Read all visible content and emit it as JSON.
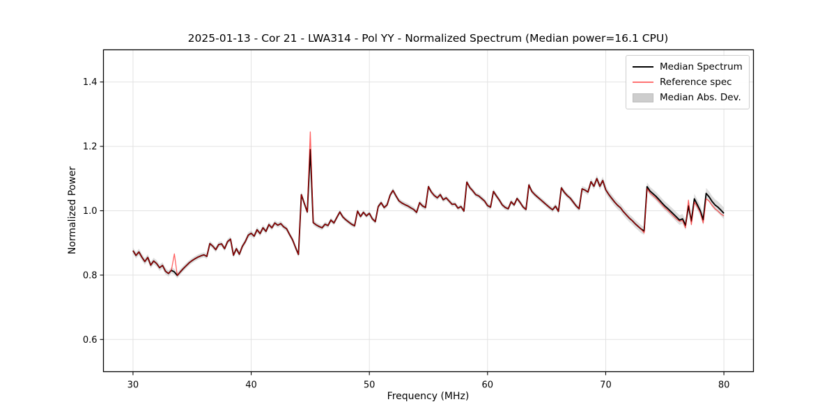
{
  "title": "2025-01-13 - Cor 21 - LWA314 - Pol YY - Normalized Spectrum (Median power=16.1 CPU)",
  "axes": {
    "xlabel": "Frequency (MHz)",
    "ylabel": "Normalized Power",
    "xlim": [
      27.5,
      82.5
    ],
    "ylim": [
      0.5,
      1.5
    ],
    "xticks": [
      30,
      40,
      50,
      60,
      70,
      80
    ],
    "xtick_labels": [
      "30",
      "40",
      "50",
      "60",
      "70",
      "80"
    ],
    "yticks": [
      0.6,
      0.8,
      1.0,
      1.2,
      1.4
    ],
    "ytick_labels": [
      "0.6",
      "0.8",
      "1.0",
      "1.2",
      "1.4"
    ],
    "grid": true
  },
  "legend": {
    "position": "upper right",
    "entries": [
      {
        "label": "Median Spectrum",
        "sample": "line",
        "color": "#000000"
      },
      {
        "label": "Reference spec",
        "sample": "line",
        "color": "rgba(255,0,0,0.55)"
      },
      {
        "label": "Median Abs. Dev.",
        "sample": "patch",
        "color": "#cdcdcd"
      }
    ]
  },
  "colors": {
    "median_line": "#000000",
    "reference_line": "rgba(255,0,0,0.62)",
    "band_fill": "#bdbdbd",
    "band_opacity": "0.5",
    "grid_line": "#e2e2e2",
    "spine": "#000000",
    "background": "#ffffff"
  },
  "chart_data": {
    "type": "line",
    "title": "2025-01-13 - Cor 21 - LWA314 - Pol YY - Normalized Spectrum (Median power=16.1 CPU)",
    "xlabel": "Frequency (MHz)",
    "ylabel": "Normalized Power",
    "xlim": [
      27.5,
      82.5
    ],
    "ylim": [
      0.5,
      1.5
    ],
    "x_start": 30.0,
    "x_step": 0.25,
    "series": [
      {
        "name": "Median Spectrum",
        "values": [
          0.876,
          0.861,
          0.872,
          0.856,
          0.842,
          0.855,
          0.831,
          0.844,
          0.836,
          0.823,
          0.83,
          0.812,
          0.805,
          0.815,
          0.81,
          0.799,
          0.81,
          0.82,
          0.829,
          0.838,
          0.845,
          0.851,
          0.856,
          0.86,
          0.863,
          0.858,
          0.898,
          0.89,
          0.879,
          0.895,
          0.897,
          0.882,
          0.904,
          0.912,
          0.862,
          0.882,
          0.865,
          0.889,
          0.904,
          0.924,
          0.93,
          0.921,
          0.941,
          0.929,
          0.947,
          0.936,
          0.957,
          0.947,
          0.962,
          0.955,
          0.96,
          0.95,
          0.944,
          0.926,
          0.91,
          0.886,
          0.864,
          1.05,
          1.022,
          0.996,
          1.19,
          0.963,
          0.956,
          0.951,
          0.947,
          0.958,
          0.954,
          0.971,
          0.962,
          0.979,
          0.996,
          0.981,
          0.972,
          0.965,
          0.958,
          0.953,
          0.999,
          0.982,
          0.995,
          0.984,
          0.992,
          0.975,
          0.966,
          1.013,
          1.025,
          1.01,
          1.018,
          1.048,
          1.063,
          1.046,
          1.031,
          1.024,
          1.019,
          1.015,
          1.009,
          1.004,
          0.995,
          1.025,
          1.015,
          1.01,
          1.075,
          1.058,
          1.047,
          1.04,
          1.05,
          1.034,
          1.04,
          1.03,
          1.02,
          1.021,
          1.008,
          1.013,
          0.999,
          1.089,
          1.072,
          1.062,
          1.05,
          1.046,
          1.038,
          1.03,
          1.016,
          1.011,
          1.06,
          1.046,
          1.033,
          1.018,
          1.01,
          1.006,
          1.028,
          1.018,
          1.038,
          1.026,
          1.012,
          1.004,
          1.08,
          1.06,
          1.05,
          1.042,
          1.034,
          1.026,
          1.018,
          1.01,
          1.003,
          1.014,
          0.998,
          1.071,
          1.057,
          1.047,
          1.039,
          1.027,
          1.015,
          1.006,
          1.068,
          1.064,
          1.058,
          1.09,
          1.076,
          1.1,
          1.076,
          1.094,
          1.065,
          1.051,
          1.039,
          1.027,
          1.017,
          1.009,
          0.997,
          0.987,
          0.977,
          0.969,
          0.959,
          0.951,
          0.943,
          0.937,
          1.075,
          1.061,
          1.053,
          1.045,
          1.035,
          1.025,
          1.015,
          1.007,
          0.998,
          0.989,
          0.98,
          0.971,
          0.975,
          0.955,
          1.015,
          0.968,
          1.037,
          1.019,
          1.0,
          0.972,
          1.054,
          1.043,
          1.029,
          1.018,
          1.011,
          1.002,
          0.992
        ]
      },
      {
        "name": "Reference spec",
        "values": [
          0.876,
          0.861,
          0.872,
          0.856,
          0.842,
          0.855,
          0.831,
          0.844,
          0.836,
          0.823,
          0.83,
          0.812,
          0.805,
          0.815,
          0.866,
          0.799,
          0.81,
          0.82,
          0.829,
          0.838,
          0.845,
          0.851,
          0.856,
          0.86,
          0.863,
          0.858,
          0.898,
          0.89,
          0.879,
          0.895,
          0.897,
          0.882,
          0.904,
          0.912,
          0.862,
          0.882,
          0.865,
          0.889,
          0.904,
          0.924,
          0.93,
          0.921,
          0.941,
          0.929,
          0.947,
          0.936,
          0.957,
          0.947,
          0.962,
          0.955,
          0.96,
          0.95,
          0.944,
          0.926,
          0.91,
          0.886,
          0.864,
          1.05,
          1.022,
          0.996,
          1.245,
          0.963,
          0.956,
          0.951,
          0.947,
          0.958,
          0.954,
          0.971,
          0.962,
          0.979,
          0.996,
          0.981,
          0.972,
          0.965,
          0.958,
          0.953,
          0.999,
          0.982,
          0.995,
          0.984,
          0.992,
          0.975,
          0.966,
          1.013,
          1.025,
          1.01,
          1.018,
          1.048,
          1.063,
          1.046,
          1.031,
          1.024,
          1.019,
          1.015,
          1.009,
          1.004,
          0.995,
          1.025,
          1.015,
          1.01,
          1.075,
          1.058,
          1.047,
          1.04,
          1.05,
          1.034,
          1.04,
          1.03,
          1.02,
          1.021,
          1.008,
          1.013,
          0.999,
          1.089,
          1.072,
          1.062,
          1.05,
          1.046,
          1.038,
          1.03,
          1.016,
          1.011,
          1.06,
          1.046,
          1.033,
          1.018,
          1.01,
          1.006,
          1.028,
          1.018,
          1.038,
          1.026,
          1.012,
          1.004,
          1.08,
          1.06,
          1.05,
          1.042,
          1.034,
          1.026,
          1.018,
          1.01,
          1.003,
          1.014,
          0.998,
          1.071,
          1.057,
          1.047,
          1.039,
          1.027,
          1.015,
          1.006,
          1.068,
          1.064,
          1.058,
          1.09,
          1.076,
          1.1,
          1.076,
          1.094,
          1.065,
          1.051,
          1.039,
          1.027,
          1.017,
          1.009,
          0.997,
          0.987,
          0.977,
          0.969,
          0.959,
          0.951,
          0.943,
          0.931,
          1.069,
          1.055,
          1.047,
          1.039,
          1.029,
          1.019,
          1.009,
          1.001,
          0.992,
          0.983,
          0.974,
          0.967,
          0.97,
          0.947,
          1.033,
          0.957,
          1.027,
          1.012,
          0.994,
          0.962,
          1.037,
          1.03,
          1.017,
          1.006,
          0.999,
          0.99,
          0.984
        ]
      },
      {
        "name": "Median Abs. Dev.",
        "type": "band",
        "center": "Median Spectrum",
        "x": [
          30.0,
          32.5,
          35.0,
          37.5,
          40.0,
          42.5,
          45.0,
          47.5,
          50.0,
          52.5,
          55.0,
          57.5,
          60.0,
          62.5,
          65.0,
          67.5,
          70.0,
          72.5,
          75.0,
          77.5,
          80.0
        ],
        "half_width": [
          0.01,
          0.01,
          0.008,
          0.008,
          0.009,
          0.008,
          0.008,
          0.007,
          0.007,
          0.008,
          0.008,
          0.007,
          0.008,
          0.007,
          0.008,
          0.008,
          0.012,
          0.012,
          0.014,
          0.016,
          0.018
        ]
      }
    ]
  }
}
